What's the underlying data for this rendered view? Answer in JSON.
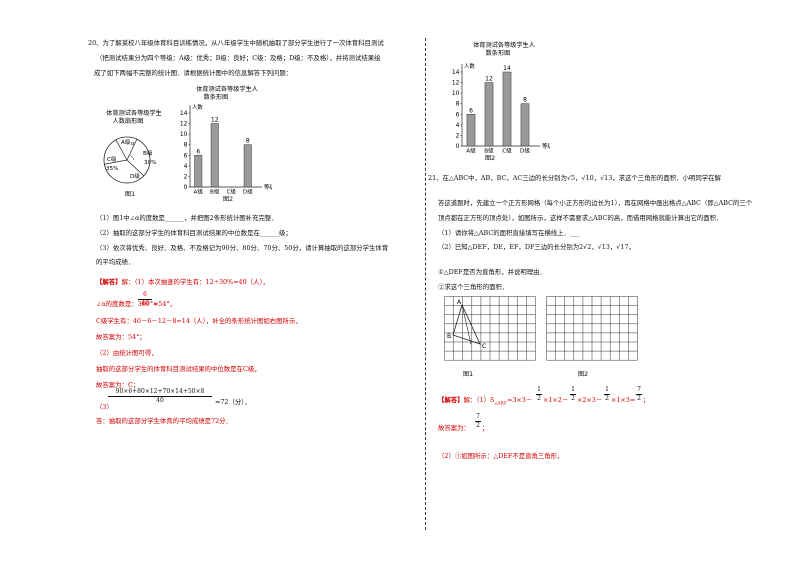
{
  "left": {
    "q20_line1": "20、为了解某校八年级体育科目训练情况，从八年级学生中随机抽取了部分学生进行了一次体育科目测试",
    "q20_line2": "（把测试结果分为四个等级：A级：优秀；B级：良好；C级：及格；D级：不及格），并将测试结果绘",
    "q20_line3": "成了如下两幅不完整的统计图．请根据统计图中的信息解答下列问题：",
    "pie_title_1": "体育测试各等级学生",
    "pie_title_2": "人数扇形图",
    "pie_labels": {
      "a": "A级",
      "b": "B级",
      "b_pct": "30%",
      "c": "C级",
      "c_pct": "35%",
      "d": "D级",
      "alpha": "α"
    },
    "fig1_label": "图1",
    "fig2_label": "图2",
    "q1": "（1）图1中∠α的度数是______，并把图2条形统计图补充完整．",
    "q2": "（2）抽取的这部分学生的体育科目测试结果的中位数是在______级；",
    "q3_line1": "（3）依次将优秀、良好、及格、不及格记为90分、80分、70分、50分，请计算抽取的这部分学生体育",
    "q3_line2": "的平均成绩．",
    "sol_head": "【解答】",
    "sol_1a": "解：（1）本次抽查的学生有：12÷30%=40（人），",
    "sol_1b_pre": "∠α的度数是：360°×",
    "sol_1b_num": "6",
    "sol_1b_den": "40",
    "sol_1b_post": "=54°，",
    "sol_1c": "C级学生有：40－6－12－8=14（人），补全的条形统计图如右图所示，",
    "sol_1d": "故答案为：54°；",
    "sol_2a": "（2）由统计图可得，",
    "sol_2b": "抽取的这部分学生的体育科目测试结果的中位数是在C级，",
    "sol_2c": "故答案为：C；",
    "sol_3_pre": "（3）",
    "sol_3_num": "90×6+80×12+70×14+50×8",
    "sol_3_den": "40",
    "sol_3_post": "=72（分），",
    "sol_3_ans": "答：抽取的这部分学生体育的平均成绩是72分．"
  },
  "right": {
    "q21_line1": "21、在△ABC中，AB，BC，AC三边的长分别为√5，√10，√13，求这个三角形的面积．小明同学在解",
    "q21_line2": "答这道题时，先建立一个正方形网格（每个小正方形的边长为1），再在网格中画出格点△ABC（即△ABC的三个",
    "q21_line3": "顶点都在正方形的顶点处），如图所示，这样不需要求△ABC的高，而借用网格就能计算出它的面积．",
    "q21_p1": "（1）请你将△ABC的面积直接填写在横线上．___",
    "q21_p2": "（2）已知△DEF，DE，EF，DF三边的长分别为2√2，√13，√17，",
    "q21_p2a": "①△DEF是否为直角形，并说明理由．",
    "q21_p2b": "②求这个三角形的面积．",
    "grid_fig1": "图1",
    "grid_fig2": "图2",
    "vertex_a": "A",
    "vertex_b": "B",
    "vertex_c": "C",
    "sol_head": "【解答】",
    "sol_1_pre": "解：（1）S",
    "sol_1_sub": "△ABC",
    "sol_1_mid": "=3×3－",
    "sol_1_f": "1",
    "sol_1_d": "2",
    "sol_1_t1": "×1×2－",
    "sol_1_t2": "×2×3－",
    "sol_1_t3": "×1×3=",
    "sol_1_r_num": "7",
    "sol_1_r_den": "2",
    "sol_1_end": "；",
    "sol_1_ans_pre": "故答案为：",
    "sol_1_ans_end": "；",
    "sol_2": "（2）①如图所示：△DEF不是直角三角形，",
    "fig2_label": "图2",
    "bar_title_1": "体育测试各等级学生人",
    "bar_title_2": "数条形图"
  },
  "bar_chart_left": {
    "type": "bar",
    "title": "体育测试各等级学生人数条形图",
    "ylabel": "人数",
    "categories": [
      "A级",
      "B级",
      "C级",
      "D级"
    ],
    "values": [
      6,
      12,
      null,
      8
    ],
    "data_labels": [
      "6",
      "12",
      "",
      "8"
    ],
    "ylim": [
      0,
      14
    ],
    "yticks": [
      0,
      2,
      4,
      6,
      8,
      10,
      12,
      14
    ],
    "xlabel": "等级"
  },
  "bar_chart_right": {
    "type": "bar",
    "title": "体育测试各等级学生人数条形图",
    "ylabel": "人数",
    "categories": [
      "A级",
      "B级",
      "C级",
      "D级"
    ],
    "values": [
      6,
      12,
      14,
      8
    ],
    "ylim": [
      0,
      14
    ],
    "yticks": [
      0,
      2,
      4,
      6,
      8,
      10,
      12,
      14
    ],
    "xlabel": "等级"
  },
  "chart_data": [
    {
      "type": "bar",
      "categories": [
        "A级",
        "B级",
        "C级",
        "D级"
      ],
      "values": [
        6,
        12,
        null,
        8
      ],
      "ylabel": "人数",
      "ylim": [
        0,
        14
      ]
    },
    {
      "type": "bar",
      "categories": [
        "A级",
        "B级",
        "C级",
        "D级"
      ],
      "values": [
        6,
        12,
        14,
        8
      ],
      "ylabel": "人数",
      "ylim": [
        0,
        14
      ]
    },
    {
      "type": "pie",
      "categories": [
        "A级",
        "B级",
        "C级",
        "D级"
      ],
      "values": [
        15,
        30,
        35,
        20
      ],
      "labels": [
        "",
        "30%",
        "35%",
        ""
      ]
    }
  ]
}
